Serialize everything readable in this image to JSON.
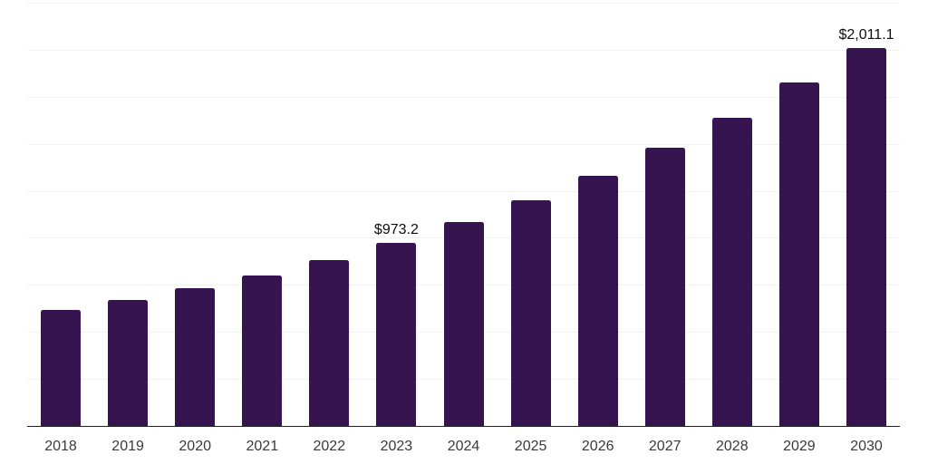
{
  "chart_data": {
    "type": "bar",
    "categories": [
      "2018",
      "2019",
      "2020",
      "2021",
      "2022",
      "2023",
      "2024",
      "2025",
      "2026",
      "2027",
      "2028",
      "2029",
      "2030"
    ],
    "values": [
      615,
      670,
      733,
      798,
      880,
      973.2,
      1085,
      1200,
      1330,
      1480,
      1640,
      1825,
      2011.1
    ],
    "data_labels": [
      "",
      "",
      "",
      "",
      "",
      "$973.2",
      "",
      "",
      "",
      "",
      "",
      "",
      "$2,011.1"
    ],
    "title": "",
    "xlabel": "",
    "ylabel": "",
    "ylim": [
      0,
      2250
    ],
    "gridline_step": 250,
    "grid": true,
    "legend": false,
    "y_tick_labels_visible": false,
    "bar_color": "#351450",
    "gridline_color": "#f2f2f2",
    "axis_line_color": "#222222",
    "data_label_color": "#0d0d0d",
    "tick_label_color": "#3a3a3a",
    "background_color": "#ffffff"
  }
}
